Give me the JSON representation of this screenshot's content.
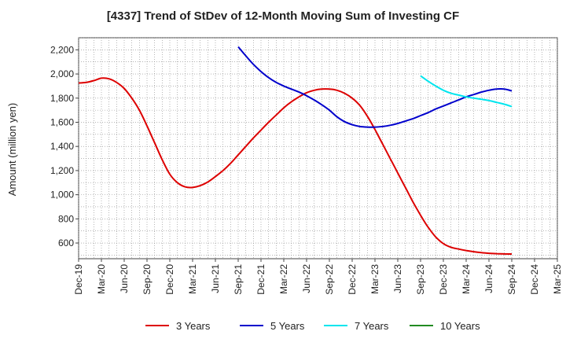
{
  "chart_data": {
    "type": "line",
    "title": "[4337]  Trend of StDev of 12-Month Moving Sum of Investing CF",
    "ylabel": "Amount (million yen)",
    "xlabel": "",
    "ylim": [
      470,
      2300
    ],
    "yticks": [
      600,
      800,
      1000,
      1200,
      1400,
      1600,
      1800,
      2000,
      2200
    ],
    "ytick_labels": [
      "600",
      "800",
      "1,000",
      "1,200",
      "1,400",
      "1,600",
      "1,800",
      "2,000",
      "2,200"
    ],
    "xtick_labels": [
      "Dec-19",
      "Mar-20",
      "Jun-20",
      "Sep-20",
      "Dec-20",
      "Mar-21",
      "Jun-21",
      "Sep-21",
      "Dec-21",
      "Mar-22",
      "Jun-22",
      "Sep-22",
      "Dec-22",
      "Mar-23",
      "Jun-23",
      "Sep-23",
      "Dec-23",
      "Mar-24",
      "Jun-24",
      "Sep-24",
      "Dec-24",
      "Mar-25"
    ],
    "grid": true,
    "legend_position": "bottom",
    "series": [
      {
        "name": "3 Years",
        "color": "#dd0000",
        "x": [
          "Dec-19",
          "Jan-20",
          "Feb-20",
          "Mar-20",
          "Apr-20",
          "May-20",
          "Jun-20",
          "Jul-20",
          "Aug-20",
          "Sep-20",
          "Oct-20",
          "Nov-20",
          "Dec-20",
          "Jan-21",
          "Feb-21",
          "Mar-21",
          "Apr-21",
          "May-21",
          "Jun-21",
          "Jul-21",
          "Aug-21",
          "Sep-21",
          "Oct-21",
          "Nov-21",
          "Dec-21",
          "Jan-22",
          "Feb-22",
          "Mar-22",
          "Apr-22",
          "May-22",
          "Jun-22",
          "Jul-22",
          "Aug-22",
          "Sep-22",
          "Oct-22",
          "Nov-22",
          "Dec-22",
          "Jan-23",
          "Feb-23",
          "Mar-23",
          "Apr-23",
          "May-23",
          "Jun-23",
          "Jul-23",
          "Aug-23",
          "Sep-23",
          "Oct-23",
          "Nov-23",
          "Dec-23",
          "Jan-24",
          "Feb-24",
          "Mar-24",
          "Apr-24",
          "May-24",
          "Jun-24",
          "Jul-24",
          "Aug-24",
          "Sep-24"
        ],
        "values": [
          1925,
          1930,
          1945,
          1965,
          1960,
          1930,
          1880,
          1800,
          1700,
          1570,
          1430,
          1290,
          1170,
          1100,
          1065,
          1060,
          1075,
          1105,
          1150,
          1200,
          1260,
          1330,
          1400,
          1470,
          1535,
          1600,
          1660,
          1720,
          1770,
          1810,
          1845,
          1865,
          1875,
          1875,
          1865,
          1840,
          1800,
          1740,
          1650,
          1540,
          1420,
          1300,
          1180,
          1060,
          940,
          830,
          730,
          650,
          595,
          565,
          550,
          538,
          528,
          520,
          515,
          512,
          510,
          509
        ]
      },
      {
        "name": "5 Years",
        "color": "#0000cc",
        "x": [
          "Sep-21",
          "Oct-21",
          "Nov-21",
          "Dec-21",
          "Jan-22",
          "Feb-22",
          "Mar-22",
          "Apr-22",
          "May-22",
          "Jun-22",
          "Jul-22",
          "Aug-22",
          "Sep-22",
          "Oct-22",
          "Nov-22",
          "Dec-22",
          "Jan-23",
          "Feb-23",
          "Mar-23",
          "Apr-23",
          "May-23",
          "Jun-23",
          "Jul-23",
          "Aug-23",
          "Sep-23",
          "Oct-23",
          "Nov-23",
          "Dec-23",
          "Jan-24",
          "Feb-24",
          "Mar-24",
          "Apr-24",
          "May-24",
          "Jun-24",
          "Jul-24",
          "Aug-24",
          "Sep-24"
        ],
        "values": [
          2225,
          2150,
          2080,
          2020,
          1970,
          1930,
          1900,
          1875,
          1850,
          1820,
          1785,
          1745,
          1700,
          1645,
          1605,
          1580,
          1565,
          1560,
          1560,
          1565,
          1575,
          1590,
          1610,
          1630,
          1655,
          1680,
          1710,
          1735,
          1760,
          1785,
          1810,
          1830,
          1850,
          1865,
          1875,
          1875,
          1860
        ]
      },
      {
        "name": "7 Years",
        "color": "#00e5ee",
        "x": [
          "Sep-23",
          "Oct-23",
          "Nov-23",
          "Dec-23",
          "Jan-24",
          "Feb-24",
          "Mar-24",
          "Apr-24",
          "May-24",
          "Jun-24",
          "Jul-24",
          "Aug-24",
          "Sep-24"
        ],
        "values": [
          1985,
          1940,
          1900,
          1865,
          1840,
          1825,
          1810,
          1800,
          1790,
          1780,
          1765,
          1750,
          1730
        ]
      },
      {
        "name": "10 Years",
        "color": "#228b22",
        "x": [],
        "values": []
      }
    ]
  }
}
